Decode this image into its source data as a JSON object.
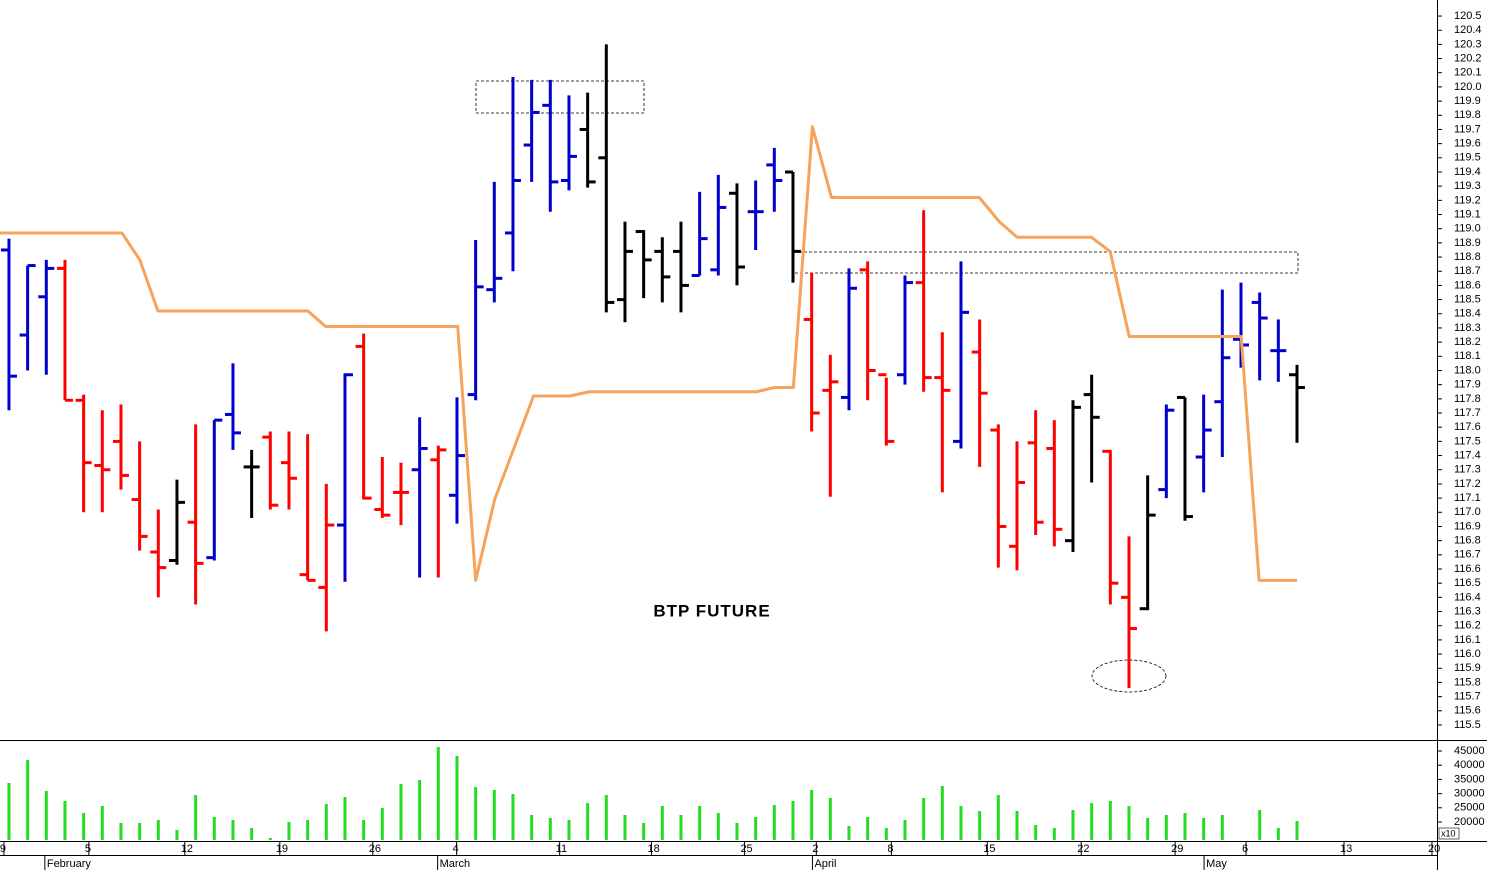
{
  "chart_data": [
    {
      "type": "ohlc",
      "title": "BTP FUTURE",
      "x": [
        0,
        1,
        2,
        3,
        4,
        5,
        6,
        7,
        8,
        9,
        10,
        11,
        12,
        13,
        14,
        15,
        16,
        17,
        18,
        19,
        20,
        21,
        22,
        23,
        24,
        25,
        26,
        27,
        28,
        29,
        30,
        31,
        32,
        33,
        34,
        35,
        36,
        37,
        38,
        39,
        40,
        41,
        42,
        43,
        44,
        45,
        46,
        47,
        48,
        49,
        50,
        51,
        52,
        53,
        54,
        55,
        56,
        57,
        58,
        59,
        60,
        61,
        62,
        63,
        64,
        65,
        66,
        67,
        68,
        69
      ],
      "open": [
        118.85,
        118.25,
        118.52,
        118.72,
        117.79,
        117.33,
        117.5,
        117.09,
        116.72,
        116.66,
        116.93,
        116.68,
        117.69,
        117.32,
        117.53,
        117.35,
        116.56,
        116.47,
        116.91,
        118.17,
        117.02,
        117.14,
        117.3,
        117.37,
        117.12,
        117.83,
        118.57,
        118.97,
        119.59,
        119.87,
        119.34,
        119.7,
        119.5,
        118.5,
        118.98,
        118.84,
        118.84,
        118.67,
        118.71,
        119.25,
        119.12,
        119.45,
        119.4,
        118.36,
        117.86,
        117.81,
        118.71,
        117.97,
        117.97,
        118.62,
        117.95,
        117.5,
        118.13,
        117.58,
        116.76,
        117.49,
        117.45,
        116.8,
        117.83,
        117.43,
        116.4,
        116.32,
        117.16,
        117.81,
        117.39,
        117.78,
        118.22,
        118.48,
        118.14,
        117.97
      ],
      "high": [
        118.93,
        118.74,
        118.78,
        118.78,
        117.83,
        117.72,
        117.76,
        117.5,
        117.02,
        117.23,
        117.62,
        117.65,
        118.05,
        117.44,
        117.57,
        117.57,
        117.55,
        117.2,
        117.98,
        118.26,
        117.39,
        117.35,
        117.67,
        117.47,
        117.81,
        118.92,
        119.33,
        120.07,
        120.05,
        120.05,
        119.94,
        119.96,
        120.3,
        119.05,
        118.99,
        118.94,
        119.05,
        119.26,
        119.38,
        119.32,
        119.34,
        119.57,
        119.4,
        118.69,
        118.11,
        118.72,
        118.77,
        117.95,
        118.67,
        119.13,
        118.27,
        118.77,
        118.36,
        117.62,
        117.5,
        117.72,
        117.65,
        117.79,
        117.97,
        117.44,
        116.83,
        117.26,
        117.76,
        117.81,
        117.83,
        118.57,
        118.62,
        118.55,
        118.36,
        118.04
      ],
      "low": [
        117.72,
        118.0,
        117.97,
        117.79,
        117.0,
        117.0,
        117.16,
        116.73,
        116.4,
        116.63,
        116.35,
        116.66,
        117.44,
        116.96,
        117.02,
        117.02,
        116.52,
        116.16,
        116.51,
        117.09,
        116.96,
        116.91,
        116.54,
        116.54,
        116.92,
        117.79,
        118.48,
        118.7,
        119.33,
        119.12,
        119.27,
        119.29,
        118.41,
        118.34,
        118.51,
        118.48,
        118.41,
        118.67,
        118.67,
        118.6,
        118.85,
        119.12,
        118.62,
        117.57,
        117.11,
        117.72,
        117.79,
        117.47,
        117.9,
        117.85,
        117.14,
        117.45,
        117.32,
        116.61,
        116.59,
        116.84,
        116.76,
        116.72,
        117.21,
        116.35,
        115.76,
        116.31,
        117.1,
        116.94,
        117.14,
        117.39,
        118.02,
        117.93,
        117.92,
        117.49
      ],
      "close": [
        117.96,
        118.74,
        118.72,
        117.79,
        117.35,
        117.3,
        117.26,
        116.83,
        116.61,
        117.07,
        116.64,
        117.65,
        117.56,
        117.32,
        117.05,
        117.24,
        116.52,
        116.91,
        117.97,
        117.1,
        116.98,
        117.14,
        117.45,
        117.44,
        117.4,
        118.59,
        118.65,
        119.34,
        119.82,
        119.33,
        119.51,
        119.33,
        118.48,
        118.84,
        118.78,
        118.66,
        118.6,
        118.93,
        119.15,
        118.73,
        119.12,
        119.34,
        118.84,
        117.7,
        117.92,
        118.58,
        118.0,
        117.5,
        118.62,
        117.95,
        117.86,
        118.41,
        117.84,
        116.9,
        117.21,
        116.93,
        116.88,
        117.74,
        117.67,
        116.5,
        116.18,
        116.98,
        117.72,
        116.97,
        117.58,
        118.09,
        118.18,
        118.37,
        118.14,
        117.88
      ],
      "colors": [
        "#0000cc",
        "#0000cc",
        "#0000cc",
        "#ff0000",
        "#ff0000",
        "#ff0000",
        "#ff0000",
        "#ff0000",
        "#ff0000",
        "#000000",
        "#ff0000",
        "#0000cc",
        "#0000cc",
        "#000000",
        "#ff0000",
        "#ff0000",
        "#ff0000",
        "#ff0000",
        "#0000cc",
        "#ff0000",
        "#ff0000",
        "#ff0000",
        "#0000cc",
        "#ff0000",
        "#0000cc",
        "#0000cc",
        "#0000cc",
        "#0000cc",
        "#0000cc",
        "#0000cc",
        "#0000cc",
        "#000000",
        "#000000",
        "#000000",
        "#000000",
        "#000000",
        "#000000",
        "#0000cc",
        "#0000cc",
        "#000000",
        "#0000cc",
        "#0000cc",
        "#000000",
        "#ff0000",
        "#ff0000",
        "#0000cc",
        "#ff0000",
        "#ff0000",
        "#0000cc",
        "#ff0000",
        "#ff0000",
        "#0000cc",
        "#ff0000",
        "#ff0000",
        "#ff0000",
        "#ff0000",
        "#ff0000",
        "#000000",
        "#000000",
        "#ff0000",
        "#ff0000",
        "#000000",
        "#0000cc",
        "#000000",
        "#0000cc",
        "#0000cc",
        "#0000cc",
        "#0000cc",
        "#0000cc",
        "#000000"
      ],
      "lines": [
        {
          "color": "#f6a35c",
          "x": [
            -0.48,
            6.05,
            7.01,
            7.98,
            16.01,
            16.97,
            24.04,
            25.0,
            26.02,
            28.1,
            30.03,
            31.1,
            40.04,
            41.0,
            42.02,
            43.04,
            44.06,
            51.98,
            53.05,
            54.01,
            57.98,
            58.99,
            60.01,
            66.01,
            66.97,
            69.0
          ],
          "values": [
            118.97,
            118.97,
            118.78,
            118.42,
            118.42,
            118.31,
            118.31,
            116.52,
            117.09,
            117.82,
            117.82,
            117.85,
            117.85,
            117.88,
            117.88,
            119.72,
            119.22,
            119.22,
            119.05,
            118.94,
            118.94,
            118.84,
            118.24,
            118.24,
            116.52,
            116.52
          ]
        }
      ],
      "xlim": [
        -0.48,
        76.5
      ],
      "ylim": [
        115.394,
        120.613
      ],
      "yticks": [
        120.5,
        120.4,
        120.3,
        120.2,
        120.1,
        {
          "value": 120,
          "label": "120.0"
        },
        119.9,
        119.8,
        119.7,
        119.6,
        119.5,
        119.4,
        119.3,
        119.2,
        119.1,
        {
          "value": 119,
          "label": "119.0"
        },
        118.9,
        118.8,
        118.7,
        118.6,
        118.5,
        118.4,
        118.3,
        118.2,
        118.1,
        {
          "value": 118,
          "label": "118.0"
        },
        117.9,
        117.8,
        117.7,
        117.6,
        117.5,
        117.4,
        117.3,
        117.2,
        117.1,
        {
          "value": 117,
          "label": "117.0"
        },
        116.9,
        116.8,
        116.7,
        116.6,
        116.5,
        116.4,
        116.3,
        116.2,
        116.1,
        {
          "value": 116,
          "label": "116.0"
        },
        115.9,
        115.8,
        115.7,
        115.6,
        115.5
      ]
    },
    {
      "type": "bar",
      "x": [
        0,
        1,
        2,
        3,
        4,
        5,
        6,
        7,
        8,
        9,
        10,
        11,
        12,
        13,
        14,
        15,
        16,
        17,
        18,
        19,
        20,
        21,
        22,
        23,
        24,
        25,
        26,
        27,
        28,
        29,
        30,
        31,
        32,
        33,
        34,
        35,
        36,
        37,
        38,
        39,
        40,
        41,
        42,
        43,
        44,
        45,
        46,
        47,
        48,
        49,
        50,
        51,
        52,
        53,
        54,
        55,
        56,
        57,
        58,
        59,
        60,
        61,
        62,
        63,
        64,
        65,
        66,
        67,
        68,
        69
      ],
      "values": [
        33730,
        41830,
        30920,
        27400,
        23170,
        25630,
        19650,
        19650,
        20700,
        17180,
        29510,
        21760,
        20700,
        17890,
        14370,
        20000,
        20700,
        26340,
        28800,
        20700,
        24930,
        33380,
        34790,
        46410,
        43240,
        32320,
        31270,
        29860,
        22470,
        21410,
        20700,
        26690,
        29510,
        22470,
        19650,
        25630,
        22470,
        25630,
        23170,
        19650,
        21760,
        25990,
        27400,
        31270,
        28450,
        18590,
        21760,
        17890,
        20700,
        28450,
        32680,
        25630,
        23880,
        29510,
        23880,
        18940,
        17890,
        24220,
        26690,
        27400,
        25630,
        21410,
        22470,
        23170,
        21410,
        22470,
        null,
        24220,
        17890,
        20350
      ],
      "color": "#22dd22",
      "xlim": [
        -0.48,
        76.5
      ],
      "ylim": [
        13663,
        48873
      ],
      "yticks": [
        45000,
        40000,
        35000,
        30000,
        25000,
        20000
      ],
      "y_multiplier": "x10",
      "xticks": [
        {
          "value": -0.27,
          "label": "9"
        },
        {
          "value": 4.28,
          "label": "5"
        },
        {
          "value": 9.42,
          "label": "12"
        },
        {
          "value": 14.51,
          "label": "19"
        },
        {
          "value": 19.49,
          "label": "26"
        },
        {
          "value": 23.98,
          "label": "4"
        },
        {
          "value": 29.5,
          "label": "11"
        },
        {
          "value": 34.42,
          "label": "18"
        },
        {
          "value": 39.4,
          "label": "25"
        },
        {
          "value": 43.25,
          "label": "2"
        },
        {
          "value": 47.27,
          "label": "8"
        },
        {
          "value": 52.41,
          "label": "15"
        },
        {
          "value": 57.44,
          "label": "22"
        },
        {
          "value": 62.47,
          "label": "29"
        },
        {
          "value": 66.27,
          "label": "6"
        },
        {
          "value": 71.52,
          "label": "13"
        },
        {
          "value": 76.23,
          "label": "20"
        }
      ],
      "month_ticks": [
        {
          "value": 2.03,
          "label": "February"
        },
        {
          "value": 23.07,
          "label": "March"
        },
        {
          "value": 43.15,
          "label": "April"
        },
        {
          "value": 64.13,
          "label": "May"
        }
      ]
    }
  ]
}
